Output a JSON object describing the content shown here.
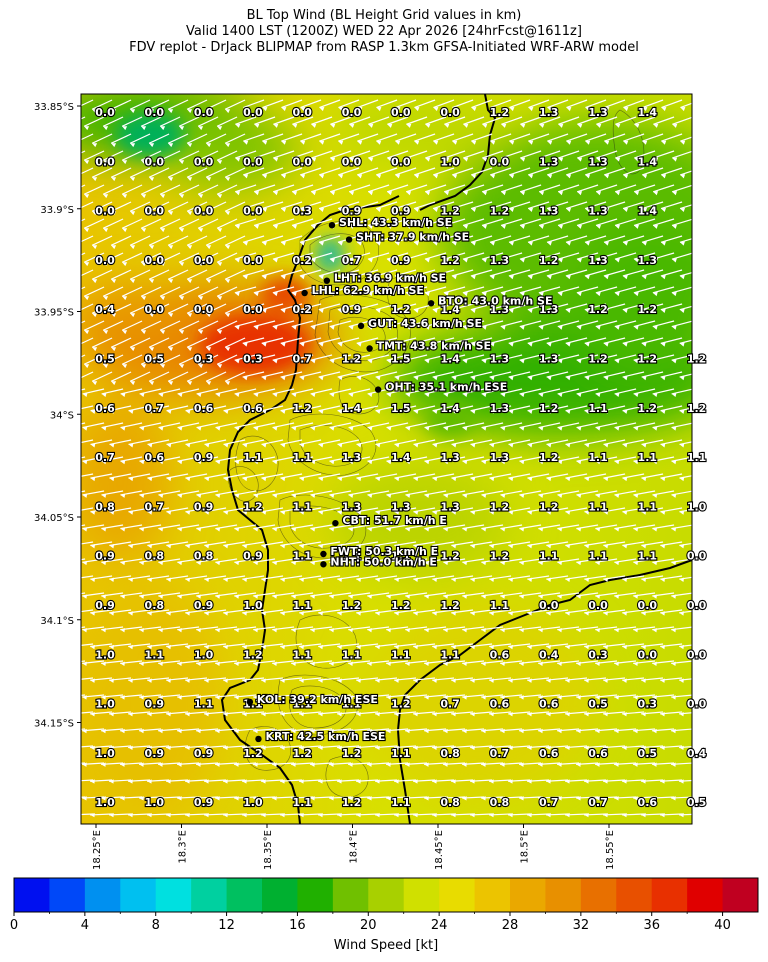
{
  "title": {
    "line1": "BL Top Wind (BL Height Grid values in km)",
    "line2": "Valid 1400 LST (1200Z) WED 22 Apr 2026 [24hrFcst@1611z]",
    "line3": "FDV replot - DrJack BLIPMAP from RASP 1.3km GFSA-Initiated WRF-ARW model"
  },
  "axes": {
    "lat_labels": [
      "33.85°S",
      "33.9°S",
      "33.95°S",
      "34°S",
      "34.05°S",
      "34.1°S",
      "34.15°S"
    ],
    "lon_labels": [
      "18.25°E",
      "18.3°E",
      "18.35°E",
      "18.4°E",
      "18.45°E",
      "18.5°E",
      "18.55°E"
    ]
  },
  "grid_values": [
    [
      "0.0",
      "0.0",
      "0.0",
      "0.0",
      "0.0",
      "0.0",
      "0.0",
      "0.0",
      "1.2",
      "1.3",
      "1.3",
      "1.4",
      ""
    ],
    [
      "0.0",
      "0.0",
      "0.0",
      "0.0",
      "0.0",
      "0.0",
      "0.0",
      "1.0",
      "0.0",
      "1.3",
      "1.3",
      "1.4",
      ""
    ],
    [
      "0.0",
      "0.0",
      "0.0",
      "0.0",
      "0.3",
      "0.9",
      "0.9",
      "1.2",
      "1.2",
      "1.3",
      "1.3",
      "1.4",
      ""
    ],
    [
      "0.0",
      "0.0",
      "0.0",
      "0.0",
      "0.2",
      "0.7",
      "0.9",
      "1.2",
      "1.3",
      "1.2",
      "1.3",
      "1.3",
      ""
    ],
    [
      "0.4",
      "0.0",
      "0.0",
      "0.0",
      "0.2",
      "0.9",
      "1.2",
      "1.4",
      "1.3",
      "1.3",
      "1.2",
      "1.2",
      ""
    ],
    [
      "0.5",
      "0.5",
      "0.3",
      "0.3",
      "0.7",
      "1.2",
      "1.5",
      "1.4",
      "1.3",
      "1.3",
      "1.2",
      "1.2",
      "1.2"
    ],
    [
      "0.6",
      "0.7",
      "0.6",
      "0.6",
      "1.2",
      "1.4",
      "1.5",
      "1.4",
      "1.3",
      "1.2",
      "1.1",
      "1.2",
      "1.2"
    ],
    [
      "0.7",
      "0.6",
      "0.9",
      "1.1",
      "1.1",
      "1.3",
      "1.4",
      "1.3",
      "1.3",
      "1.2",
      "1.1",
      "1.1",
      "1.1"
    ],
    [
      "0.8",
      "0.7",
      "0.9",
      "1.2",
      "1.1",
      "1.3",
      "1.3",
      "1.3",
      "1.2",
      "1.2",
      "1.1",
      "1.1",
      "1.0"
    ],
    [
      "0.9",
      "0.8",
      "0.8",
      "0.9",
      "1.1",
      "1.1",
      "1.1",
      "1.2",
      "1.2",
      "1.1",
      "1.1",
      "1.1",
      "0.0"
    ],
    [
      "0.9",
      "0.8",
      "0.9",
      "1.0",
      "1.1",
      "1.2",
      "1.2",
      "1.2",
      "1.1",
      "0.0",
      "0.0",
      "0.0",
      "0.0"
    ],
    [
      "1.0",
      "1.1",
      "1.0",
      "1.2",
      "1.1",
      "1.1",
      "1.1",
      "1.1",
      "0.6",
      "0.4",
      "0.3",
      "0.0",
      "0.0"
    ],
    [
      "1.0",
      "0.9",
      "1.1",
      "1.1",
      "1.1",
      "1.1",
      "1.2",
      "0.7",
      "0.6",
      "0.6",
      "0.5",
      "0.3",
      "0.0"
    ],
    [
      "1.0",
      "0.9",
      "0.9",
      "1.2",
      "1.2",
      "1.2",
      "1.1",
      "0.8",
      "0.7",
      "0.6",
      "0.6",
      "0.5",
      "0.4"
    ],
    [
      "1.0",
      "1.0",
      "0.9",
      "1.0",
      "1.1",
      "1.2",
      "1.1",
      "0.8",
      "0.8",
      "0.7",
      "0.7",
      "0.6",
      "0.5"
    ]
  ],
  "stations": [
    {
      "code": "SHL",
      "label": "SHL: 43.3 km/h SE",
      "lon": 18.388,
      "lat": 33.908
    },
    {
      "code": "SHT",
      "label": "SHT: 37.9 km/h SE",
      "lon": 18.398,
      "lat": 33.915
    },
    {
      "code": "LHT",
      "label": "LHT: 36.9 km/h SE",
      "lon": 18.385,
      "lat": 33.935
    },
    {
      "code": "LHL",
      "label": "LHL: 62.9 km/h SE",
      "lon": 18.372,
      "lat": 33.941
    },
    {
      "code": "BTO",
      "label": "BTO: 43.0 km/h SE",
      "lon": 18.446,
      "lat": 33.946
    },
    {
      "code": "GUT",
      "label": "GUT: 43.6 km/h SE",
      "lon": 18.405,
      "lat": 33.957
    },
    {
      "code": "TMT",
      "label": "TMT: 43.8 km/h SE",
      "lon": 18.41,
      "lat": 33.968
    },
    {
      "code": "OHT",
      "label": "OHT: 35.1 km/h ESE",
      "lon": 18.415,
      "lat": 33.988
    },
    {
      "code": "CBT",
      "label": "CBT: 51.7 km/h E",
      "lon": 18.39,
      "lat": 34.053
    },
    {
      "code": "FWT",
      "label": "FWT: 50.3 km/h E",
      "lon": 18.383,
      "lat": 34.068
    },
    {
      "code": "NHT",
      "label": "NHT: 50.0 km/h E",
      "lon": 18.383,
      "lat": 34.073
    },
    {
      "code": "KOL",
      "label": "KOL: 39.2 km/h ESE",
      "lon": 18.34,
      "lat": 34.14
    },
    {
      "code": "KRT",
      "label": "KRT: 42.5 km/h ESE",
      "lon": 18.345,
      "lat": 34.158
    }
  ],
  "colorbar": {
    "label": "Wind Speed [kt]",
    "ticks": [
      "0",
      "4",
      "8",
      "12",
      "16",
      "20",
      "24",
      "28",
      "32",
      "36",
      "40"
    ],
    "min": 0,
    "max": 42,
    "step": 2,
    "colors": [
      "#0010f0",
      "#0048f8",
      "#0090f0",
      "#00c0f0",
      "#00e0e0",
      "#00d0a0",
      "#00c060",
      "#00b030",
      "#20b000",
      "#70c000",
      "#a8d000",
      "#d0e000",
      "#e8dc00",
      "#ecc400",
      "#eaa800",
      "#e89000",
      "#e87000",
      "#e85000",
      "#e83000",
      "#e00000",
      "#c00020"
    ]
  },
  "scalar_field": {
    "field": "wind speed [kt]",
    "max_at": "18.35°E 33.97°S",
    "min_at": "18.44°E 33.96°S"
  }
}
